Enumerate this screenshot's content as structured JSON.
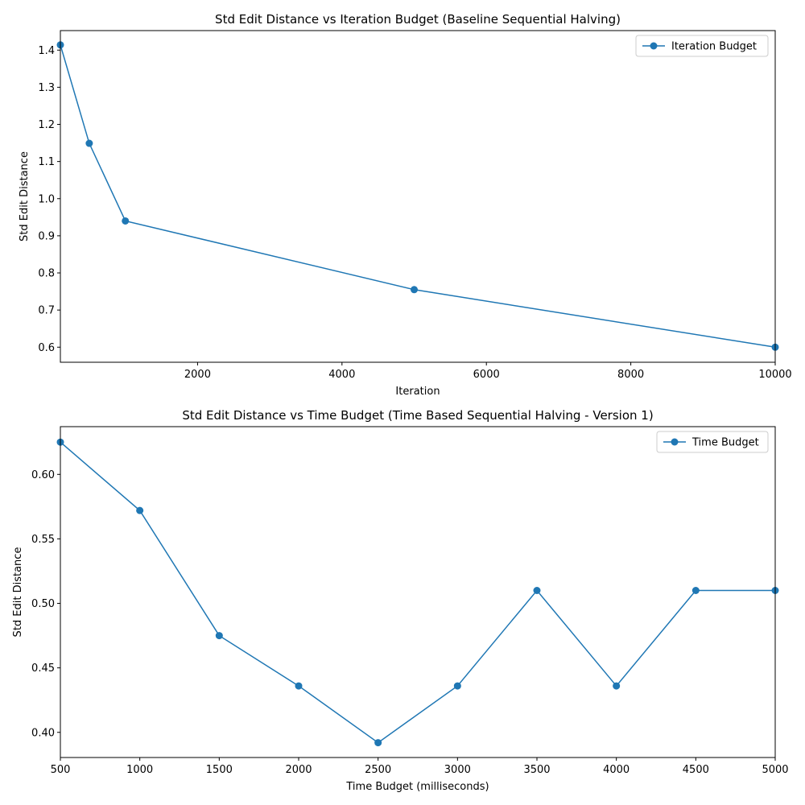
{
  "colors": {
    "series": "#1f77b4",
    "axis": "#000000",
    "legend_border": "#cccccc"
  },
  "chart_data": [
    {
      "type": "line",
      "title": "Std Edit Distance vs Iteration Budget (Baseline Sequential Halving)",
      "xlabel": "Iteration",
      "ylabel": "Std Edit Distance",
      "xlim": [
        100,
        10000
      ],
      "ylim": [
        0.5594,
        1.4526
      ],
      "xticks": [
        2000,
        4000,
        6000,
        8000,
        10000
      ],
      "xtick_labels": [
        "2000",
        "4000",
        "6000",
        "8000",
        "10000"
      ],
      "yticks": [
        0.6,
        0.7,
        0.8,
        0.9,
        1.0,
        1.1,
        1.2,
        1.3,
        1.4
      ],
      "ytick_labels": [
        "0.6",
        "0.7",
        "0.8",
        "0.9",
        "1.0",
        "1.1",
        "1.2",
        "1.3",
        "1.4"
      ],
      "grid": false,
      "legend": "top-right",
      "series": [
        {
          "name": "Iteration Budget",
          "marker": "circle",
          "x": [
            100,
            500,
            1000,
            5000,
            10000
          ],
          "y": [
            1.414,
            1.149,
            0.94,
            0.755,
            0.6
          ]
        }
      ]
    },
    {
      "type": "line",
      "title": "Std Edit Distance vs Time Budget (Time Based Sequential Halving - Version 1)",
      "xlabel": "Time Budget (milliseconds)",
      "ylabel": "Std Edit Distance",
      "xlim": [
        500,
        5000
      ],
      "ylim": [
        0.3805,
        0.637
      ],
      "xticks": [
        500,
        1000,
        1500,
        2000,
        2500,
        3000,
        3500,
        4000,
        4500,
        5000
      ],
      "xtick_labels": [
        "500",
        "1000",
        "1500",
        "2000",
        "2500",
        "3000",
        "3500",
        "4000",
        "4500",
        "5000"
      ],
      "yticks": [
        0.4,
        0.45,
        0.5,
        0.55,
        0.6
      ],
      "ytick_labels": [
        "0.40",
        "0.45",
        "0.50",
        "0.55",
        "0.60"
      ],
      "grid": false,
      "legend": "top-right",
      "series": [
        {
          "name": "Time Budget",
          "marker": "circle",
          "x": [
            500,
            1000,
            1500,
            2000,
            2500,
            3000,
            3500,
            4000,
            4500,
            5000
          ],
          "y": [
            0.625,
            0.572,
            0.475,
            0.436,
            0.392,
            0.436,
            0.51,
            0.436,
            0.51,
            0.51
          ]
        }
      ]
    }
  ]
}
